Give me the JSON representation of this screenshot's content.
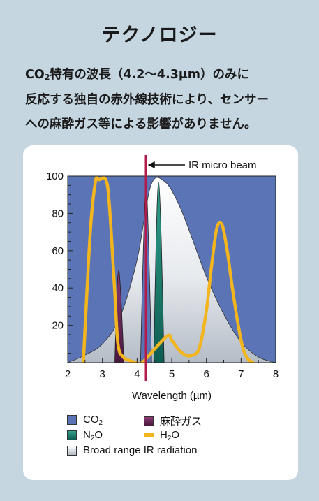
{
  "title": "テクノロジー",
  "description": {
    "line1_pre": "CO",
    "line1_sub": "2",
    "line1_post": "特有の波長（4.2〜4.3μm）のみに",
    "line2": "反応する独自の赤外線技術により、センサー",
    "line3": "への麻酔ガス等による影響がありません。"
  },
  "colors": {
    "co2": "#5a74b5",
    "n2o": "#1e8878",
    "anesthetic": "#6e2a5c",
    "h2o": "#f2b51e",
    "broad": "#d8dce2",
    "beam": "#b31b4a"
  },
  "chart_data": {
    "type": "line",
    "xlabel": "Wavelength (µm)",
    "ylabel": "",
    "xlim": [
      2,
      8
    ],
    "ylim": [
      0,
      100
    ],
    "x_ticks": [
      "2",
      "3",
      "4",
      "5",
      "6",
      "7",
      "8"
    ],
    "y_ticks": [
      "20",
      "40",
      "60",
      "80",
      "100"
    ],
    "annotation": "IR micro beam",
    "annotation_x": 4.25,
    "series": [
      {
        "name": "Broad range IR radiation",
        "x": [
          2.0,
          2.5,
          3.0,
          3.5,
          4.0,
          4.4,
          4.8,
          5.2,
          5.6,
          6.0,
          6.5,
          7.0,
          7.5,
          8.0
        ],
        "y": [
          0,
          4,
          10,
          24,
          55,
          95,
          97,
          85,
          66,
          46,
          26,
          11,
          3,
          0
        ]
      },
      {
        "name": "CO2",
        "x": [
          4.1,
          4.18,
          4.26,
          4.34,
          4.42
        ],
        "y": [
          0,
          60,
          95,
          60,
          0
        ]
      },
      {
        "name": "N2O",
        "x": [
          4.48,
          4.55,
          4.62,
          4.7,
          4.78
        ],
        "y": [
          0,
          65,
          97,
          65,
          0
        ]
      },
      {
        "name": "麻酔ガス",
        "x": [
          3.36,
          3.42,
          3.48,
          3.55,
          3.62
        ],
        "y": [
          0,
          38,
          49,
          30,
          0
        ]
      },
      {
        "name": "H2O",
        "x": [
          2.45,
          2.65,
          2.8,
          2.9,
          3.1,
          3.2,
          3.35,
          3.45,
          3.6,
          3.8,
          4.0,
          4.15,
          4.85,
          5.0,
          5.2,
          5.4,
          5.6,
          5.8,
          6.0,
          6.15,
          6.3,
          6.45,
          6.6,
          6.75,
          6.9,
          7.05,
          7.2,
          7.35
        ],
        "y": [
          0,
          70,
          97,
          98,
          98,
          85,
          40,
          10,
          3,
          1,
          0,
          0,
          14,
          12,
          7,
          4,
          4,
          8,
          28,
          52,
          72,
          74,
          60,
          40,
          22,
          8,
          2,
          0
        ]
      }
    ]
  },
  "legend": {
    "co2_pre": "CO",
    "co2_sub": "2",
    "anesthetic": "麻酔ガス",
    "n2o_pre": "N",
    "n2o_sub": "2",
    "n2o_post": "O",
    "h2o_pre": "H",
    "h2o_sub": "2",
    "h2o_post": "O",
    "broad": "Broad range IR radiation"
  }
}
